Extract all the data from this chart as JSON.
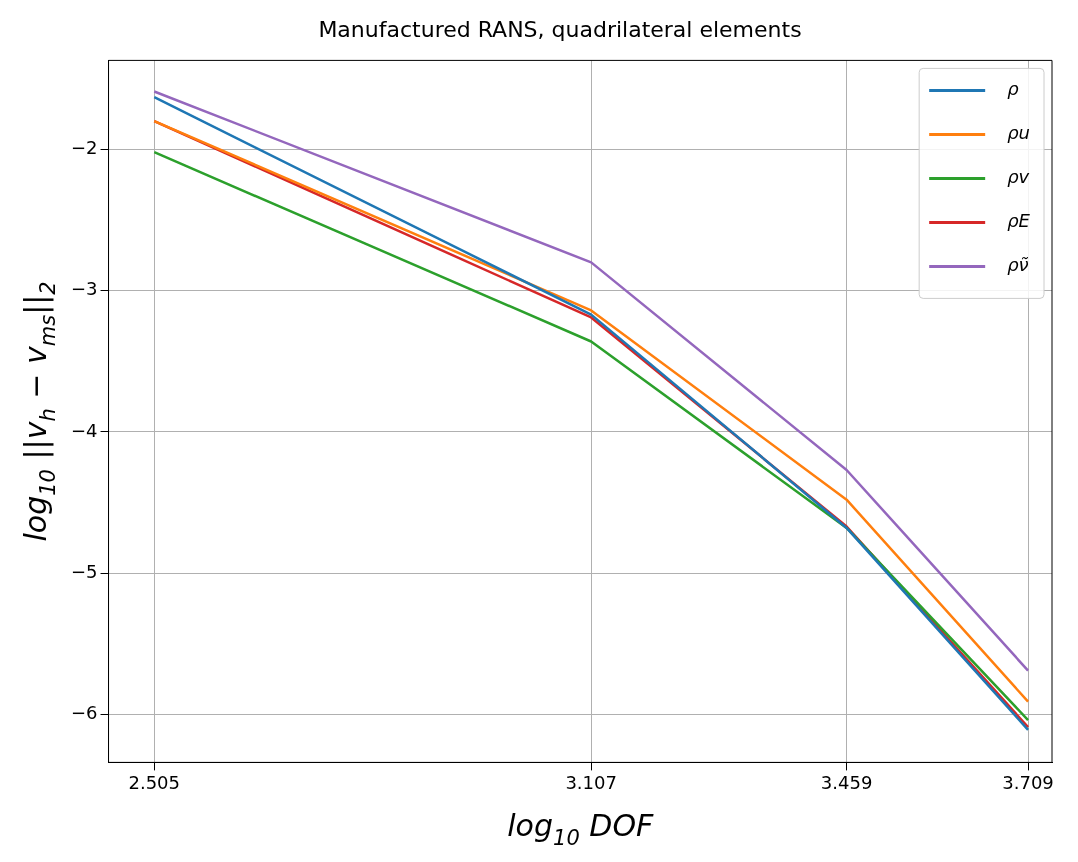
{
  "chart_data": {
    "type": "line",
    "title": "Manufactured RANS, quadrilateral elements",
    "xlabel": "log$_{10}$ DOF",
    "ylabel": "log$_{10}$ ||v$_{h}$ − v$_{ms}$||$_{2}$",
    "x": [
      2.505,
      3.107,
      3.459,
      3.709
    ],
    "series": [
      {
        "name": "ρ",
        "color": "#1f77b4",
        "values": [
          -1.63,
          -3.17,
          -4.68,
          -6.11
        ]
      },
      {
        "name": "ρu",
        "color": "#ff7f0e",
        "values": [
          -1.8,
          -3.14,
          -4.48,
          -5.91
        ]
      },
      {
        "name": "ρv",
        "color": "#2ca02c",
        "values": [
          -2.02,
          -3.36,
          -4.68,
          -6.04
        ]
      },
      {
        "name": "ρE",
        "color": "#d62728",
        "values": [
          -1.8,
          -3.19,
          -4.67,
          -6.09
        ]
      },
      {
        "name": "ρν̃",
        "color": "#9467bd",
        "values": [
          -1.59,
          -2.8,
          -4.27,
          -5.69
        ]
      }
    ],
    "xlim": [
      2.442,
      3.742
    ],
    "ylim": [
      -6.34,
      -1.37
    ],
    "xticks": [
      2.505,
      3.107,
      3.459,
      3.709
    ],
    "yticks": [
      -6,
      -5,
      -4,
      -3,
      -2
    ],
    "grid": true,
    "legend": "top right",
    "marker": "none",
    "line_style": "solid"
  }
}
